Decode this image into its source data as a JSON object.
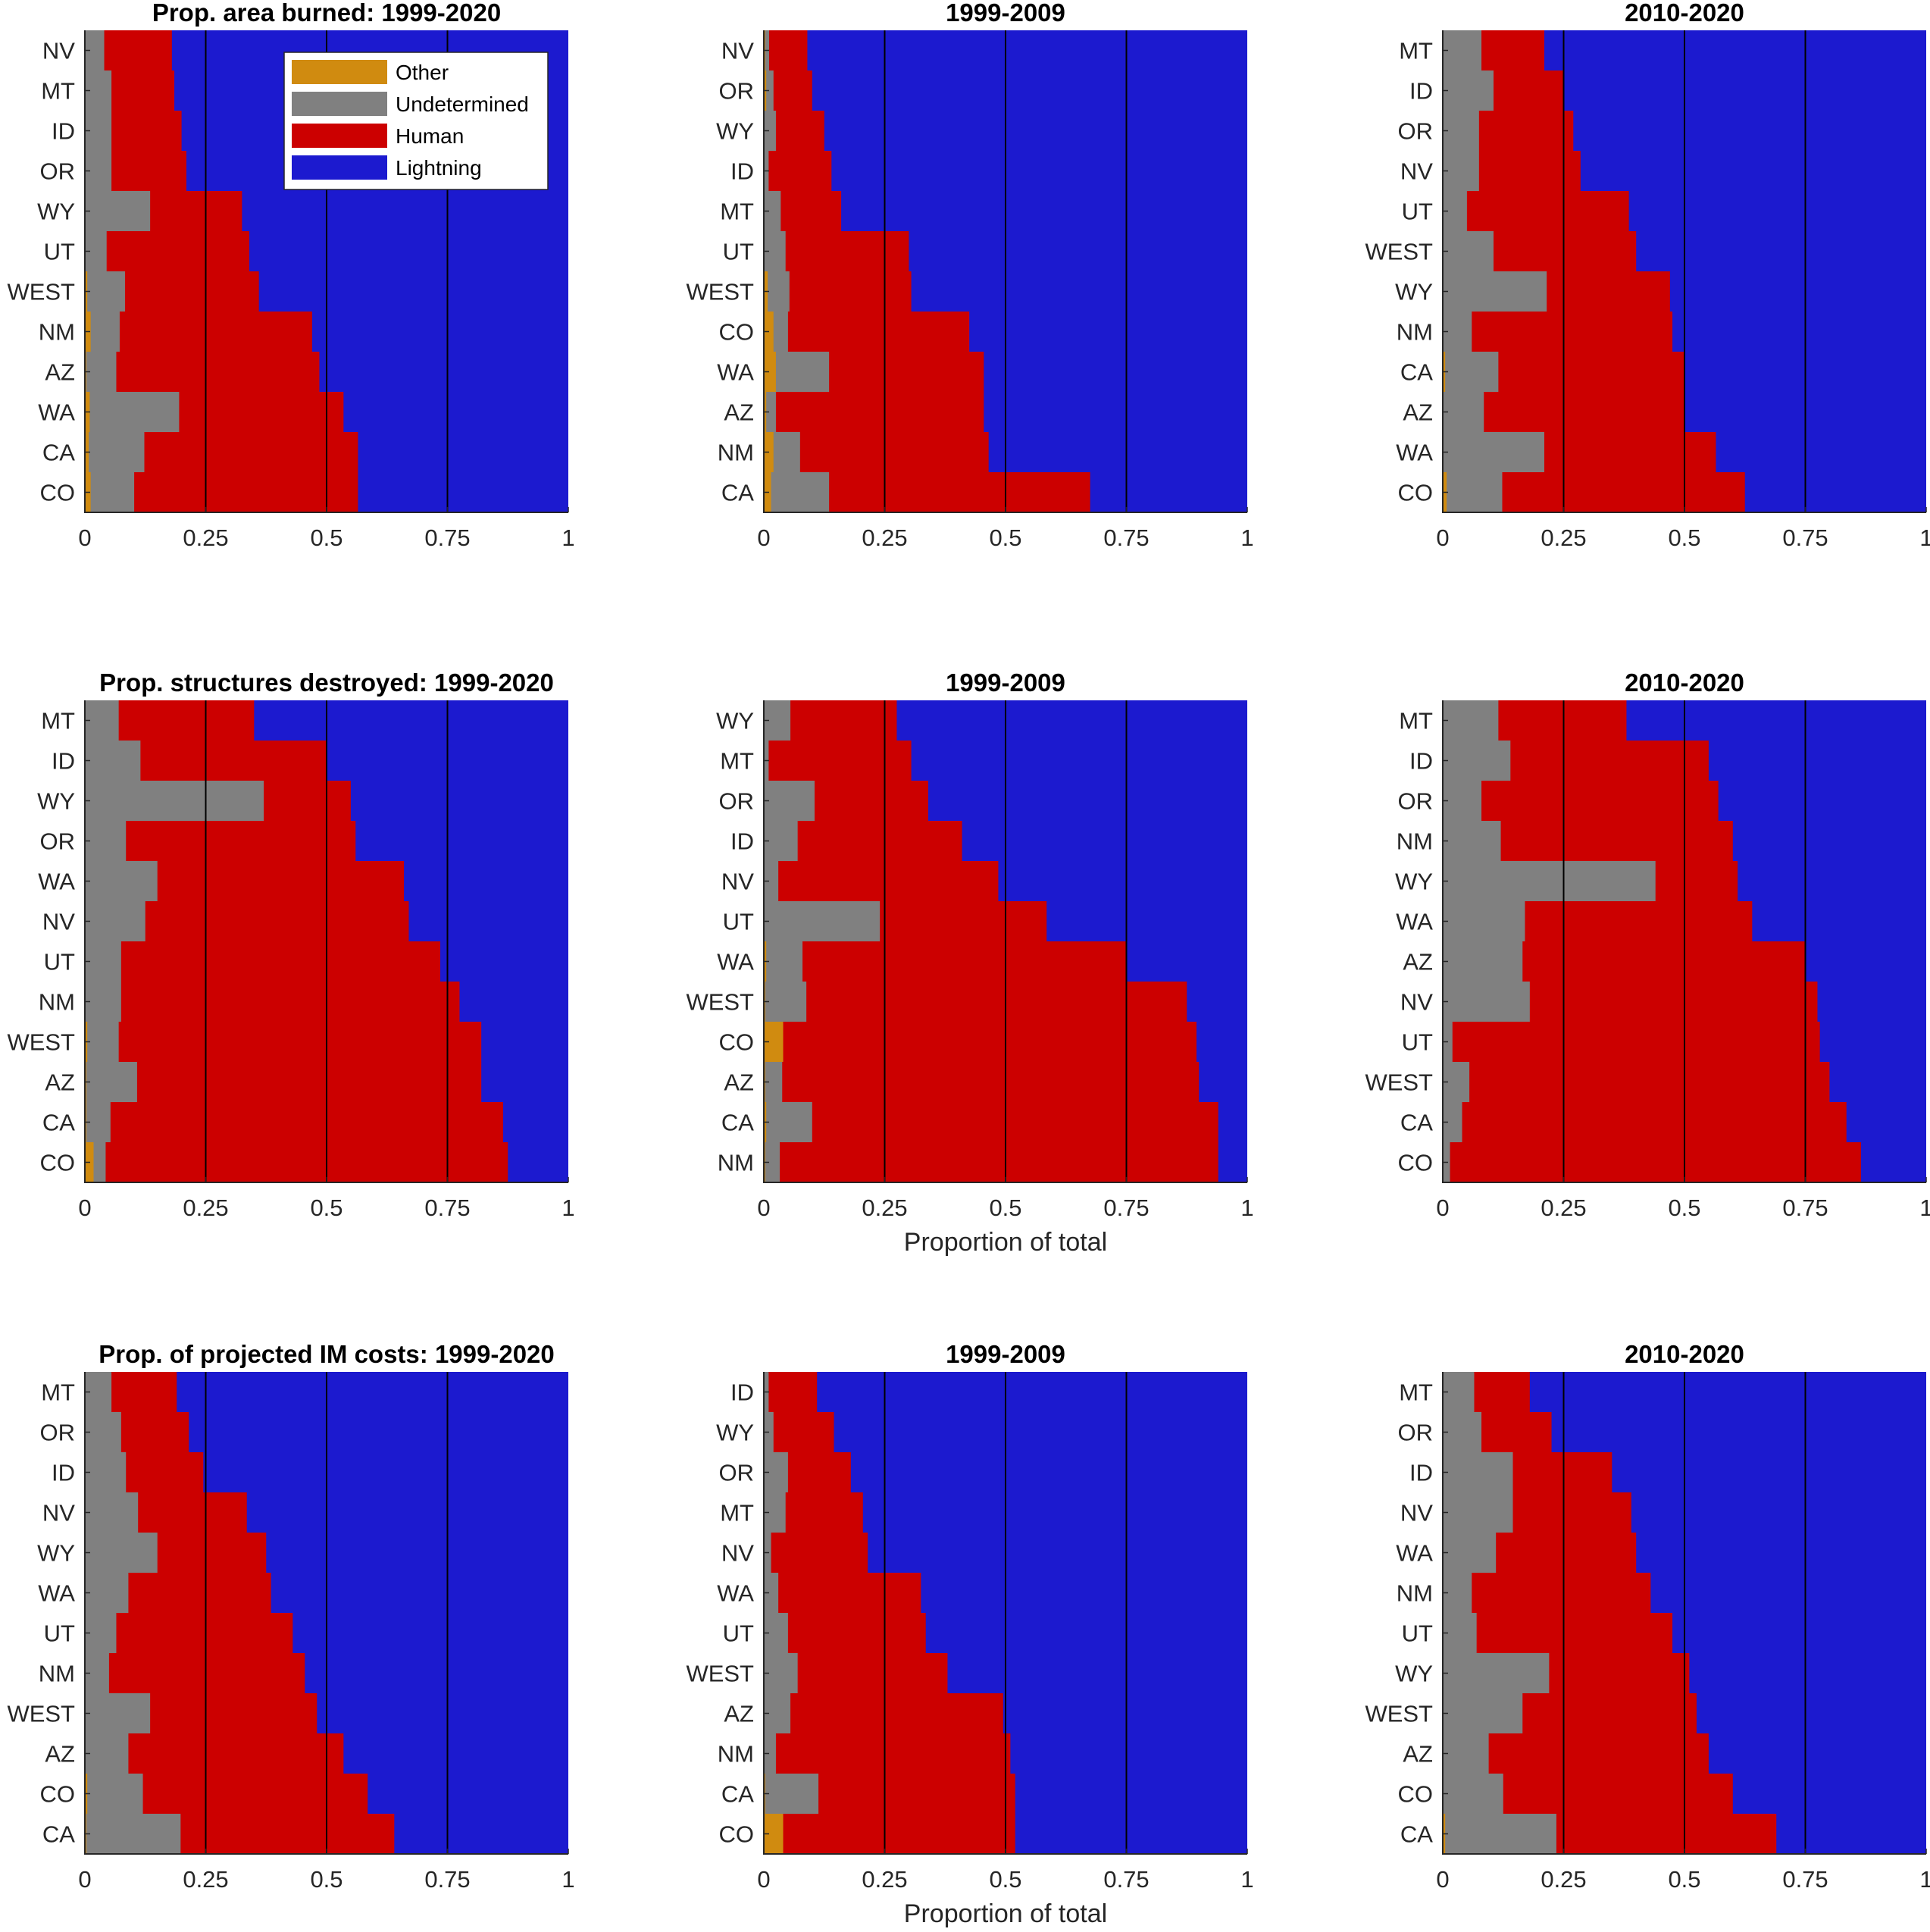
{
  "chart_data": {
    "type": "bar",
    "orientation": "horizontal-stacked",
    "colors": {
      "Other": "#D08B10",
      "Undetermined": "#808080",
      "Human": "#CC0000",
      "Lightning": "#1C1ACF"
    },
    "legend": {
      "placement": "top-right inside first panel",
      "entries": [
        "Other",
        "Undetermined",
        "Human",
        "Lightning"
      ]
    },
    "xlabel": "Proportion of total",
    "xlim": [
      0,
      1
    ],
    "xticks": [
      0,
      0.25,
      0.5,
      0.75,
      1
    ],
    "xtick_labels": [
      "0",
      "0.25",
      "0.5",
      "0.75",
      "1"
    ],
    "gridlines_at": [
      0.25,
      0.5,
      0.75
    ],
    "panels": [
      {
        "title": "Prop. area burned: 1999-2020",
        "row": 0,
        "col": 0,
        "categories": [
          "NV",
          "MT",
          "ID",
          "OR",
          "WY",
          "UT",
          "WEST",
          "NM",
          "AZ",
          "WA",
          "CA",
          "CO"
        ],
        "other": [
          0.0,
          0.0,
          0.0,
          0.0,
          0.0,
          0.0,
          0.005,
          0.012,
          0.003,
          0.01,
          0.008,
          0.012
        ],
        "undetermined": [
          0.04,
          0.055,
          0.055,
          0.055,
          0.135,
          0.045,
          0.078,
          0.06,
          0.062,
          0.185,
          0.115,
          0.09
        ],
        "human_cum": [
          0.18,
          0.185,
          0.2,
          0.21,
          0.325,
          0.34,
          0.36,
          0.47,
          0.485,
          0.535,
          0.565,
          0.565
        ]
      },
      {
        "title": "1999-2009",
        "row": 0,
        "col": 1,
        "categories": [
          "NV",
          "OR",
          "WY",
          "ID",
          "MT",
          "UT",
          "WEST",
          "CO",
          "WA",
          "AZ",
          "NM",
          "CA"
        ],
        "other": [
          0.003,
          0.005,
          0.0,
          0.0,
          0.0,
          0.0,
          0.008,
          0.02,
          0.025,
          0.005,
          0.02,
          0.015
        ],
        "undetermined": [
          0.008,
          0.015,
          0.025,
          0.01,
          0.035,
          0.045,
          0.045,
          0.03,
          0.11,
          0.02,
          0.055,
          0.12
        ],
        "human_cum": [
          0.09,
          0.1,
          0.125,
          0.14,
          0.16,
          0.3,
          0.305,
          0.425,
          0.455,
          0.455,
          0.465,
          0.675
        ]
      },
      {
        "title": "2010-2020",
        "row": 0,
        "col": 2,
        "categories": [
          "MT",
          "ID",
          "OR",
          "NV",
          "UT",
          "WEST",
          "WY",
          "NM",
          "CA",
          "AZ",
          "WA",
          "CO"
        ],
        "other": [
          0.0,
          0.0,
          0.0,
          0.0,
          0.0,
          0.0,
          0.0,
          0.0,
          0.005,
          0.0,
          0.0,
          0.008
        ],
        "undetermined": [
          0.08,
          0.105,
          0.075,
          0.075,
          0.05,
          0.105,
          0.215,
          0.06,
          0.11,
          0.085,
          0.21,
          0.115
        ],
        "human_cum": [
          0.21,
          0.25,
          0.27,
          0.285,
          0.385,
          0.4,
          0.47,
          0.475,
          0.5,
          0.5,
          0.565,
          0.625
        ]
      },
      {
        "title": "Prop. structures destroyed: 1999-2020",
        "row": 1,
        "col": 0,
        "categories": [
          "MT",
          "ID",
          "WY",
          "OR",
          "WA",
          "NV",
          "UT",
          "NM",
          "WEST",
          "AZ",
          "CA",
          "CO"
        ],
        "other": [
          0.0,
          0.0,
          0.0,
          0.0,
          0.0,
          0.0,
          0.0,
          0.0,
          0.005,
          0.003,
          0.003,
          0.018
        ],
        "undetermined": [
          0.07,
          0.115,
          0.37,
          0.085,
          0.15,
          0.125,
          0.075,
          0.075,
          0.065,
          0.105,
          0.05,
          0.025
        ],
        "human_cum": [
          0.35,
          0.5,
          0.55,
          0.56,
          0.66,
          0.67,
          0.735,
          0.775,
          0.82,
          0.82,
          0.865,
          0.875
        ]
      },
      {
        "title": "1999-2009",
        "row": 1,
        "col": 1,
        "categories": [
          "WY",
          "MT",
          "OR",
          "ID",
          "NV",
          "UT",
          "WA",
          "WEST",
          "CO",
          "AZ",
          "CA",
          "NM"
        ],
        "other": [
          0.0,
          0.0,
          0.0,
          0.0,
          0.0,
          0.0,
          0.005,
          0.003,
          0.04,
          0.003,
          0.005,
          0.003
        ],
        "undetermined": [
          0.055,
          0.01,
          0.105,
          0.07,
          0.03,
          0.24,
          0.075,
          0.085,
          0.0,
          0.035,
          0.095,
          0.03
        ],
        "human_cum": [
          0.275,
          0.305,
          0.34,
          0.41,
          0.485,
          0.585,
          0.75,
          0.875,
          0.895,
          0.9,
          0.94,
          0.94
        ]
      },
      {
        "title": "2010-2020",
        "row": 1,
        "col": 2,
        "categories": [
          "MT",
          "ID",
          "OR",
          "NM",
          "WY",
          "WA",
          "AZ",
          "NV",
          "UT",
          "WEST",
          "CA",
          "CO"
        ],
        "other": [
          0.0,
          0.0,
          0.0,
          0.0,
          0.0,
          0.0,
          0.0,
          0.0,
          0.0,
          0.0,
          0.0,
          0.0
        ],
        "undetermined": [
          0.115,
          0.14,
          0.08,
          0.12,
          0.44,
          0.17,
          0.165,
          0.18,
          0.02,
          0.055,
          0.04,
          0.015
        ],
        "human_cum": [
          0.38,
          0.55,
          0.57,
          0.6,
          0.61,
          0.64,
          0.75,
          0.775,
          0.78,
          0.8,
          0.835,
          0.865
        ]
      },
      {
        "title": "Prop. of projected IM costs: 1999-2020",
        "row": 2,
        "col": 0,
        "categories": [
          "MT",
          "OR",
          "ID",
          "NV",
          "WY",
          "WA",
          "UT",
          "NM",
          "WEST",
          "AZ",
          "CO",
          "CA"
        ],
        "other": [
          0.0,
          0.0,
          0.0,
          0.0,
          0.0,
          0.0,
          0.0,
          0.0,
          0.0,
          0.0,
          0.005,
          0.003
        ],
        "undetermined": [
          0.055,
          0.075,
          0.085,
          0.11,
          0.15,
          0.09,
          0.065,
          0.05,
          0.135,
          0.09,
          0.115,
          0.195
        ],
        "human_cum": [
          0.19,
          0.215,
          0.245,
          0.335,
          0.375,
          0.385,
          0.43,
          0.455,
          0.48,
          0.535,
          0.585,
          0.64
        ]
      },
      {
        "title": "1999-2009",
        "row": 2,
        "col": 1,
        "categories": [
          "ID",
          "WY",
          "OR",
          "MT",
          "NV",
          "WA",
          "UT",
          "WEST",
          "AZ",
          "NM",
          "CA",
          "CO"
        ],
        "other": [
          0.0,
          0.0,
          0.0,
          0.0,
          0.0,
          0.0,
          0.0,
          0.0,
          0.0,
          0.0,
          0.003,
          0.04
        ],
        "undetermined": [
          0.01,
          0.02,
          0.05,
          0.045,
          0.015,
          0.03,
          0.05,
          0.07,
          0.055,
          0.025,
          0.11,
          0.0
        ],
        "human_cum": [
          0.11,
          0.145,
          0.18,
          0.205,
          0.215,
          0.325,
          0.335,
          0.38,
          0.495,
          0.51,
          0.52,
          0.52
        ]
      },
      {
        "title": "2010-2020",
        "row": 2,
        "col": 2,
        "categories": [
          "MT",
          "OR",
          "ID",
          "NV",
          "WA",
          "NM",
          "UT",
          "WY",
          "WEST",
          "AZ",
          "CO",
          "CA"
        ],
        "other": [
          0.0,
          0.0,
          0.0,
          0.0,
          0.0,
          0.0,
          0.0,
          0.0,
          0.0,
          0.0,
          0.0,
          0.005
        ],
        "undetermined": [
          0.065,
          0.08,
          0.145,
          0.145,
          0.11,
          0.06,
          0.07,
          0.22,
          0.165,
          0.095,
          0.125,
          0.23
        ],
        "human_cum": [
          0.18,
          0.225,
          0.35,
          0.39,
          0.4,
          0.43,
          0.475,
          0.51,
          0.525,
          0.55,
          0.6,
          0.69
        ]
      }
    ]
  }
}
